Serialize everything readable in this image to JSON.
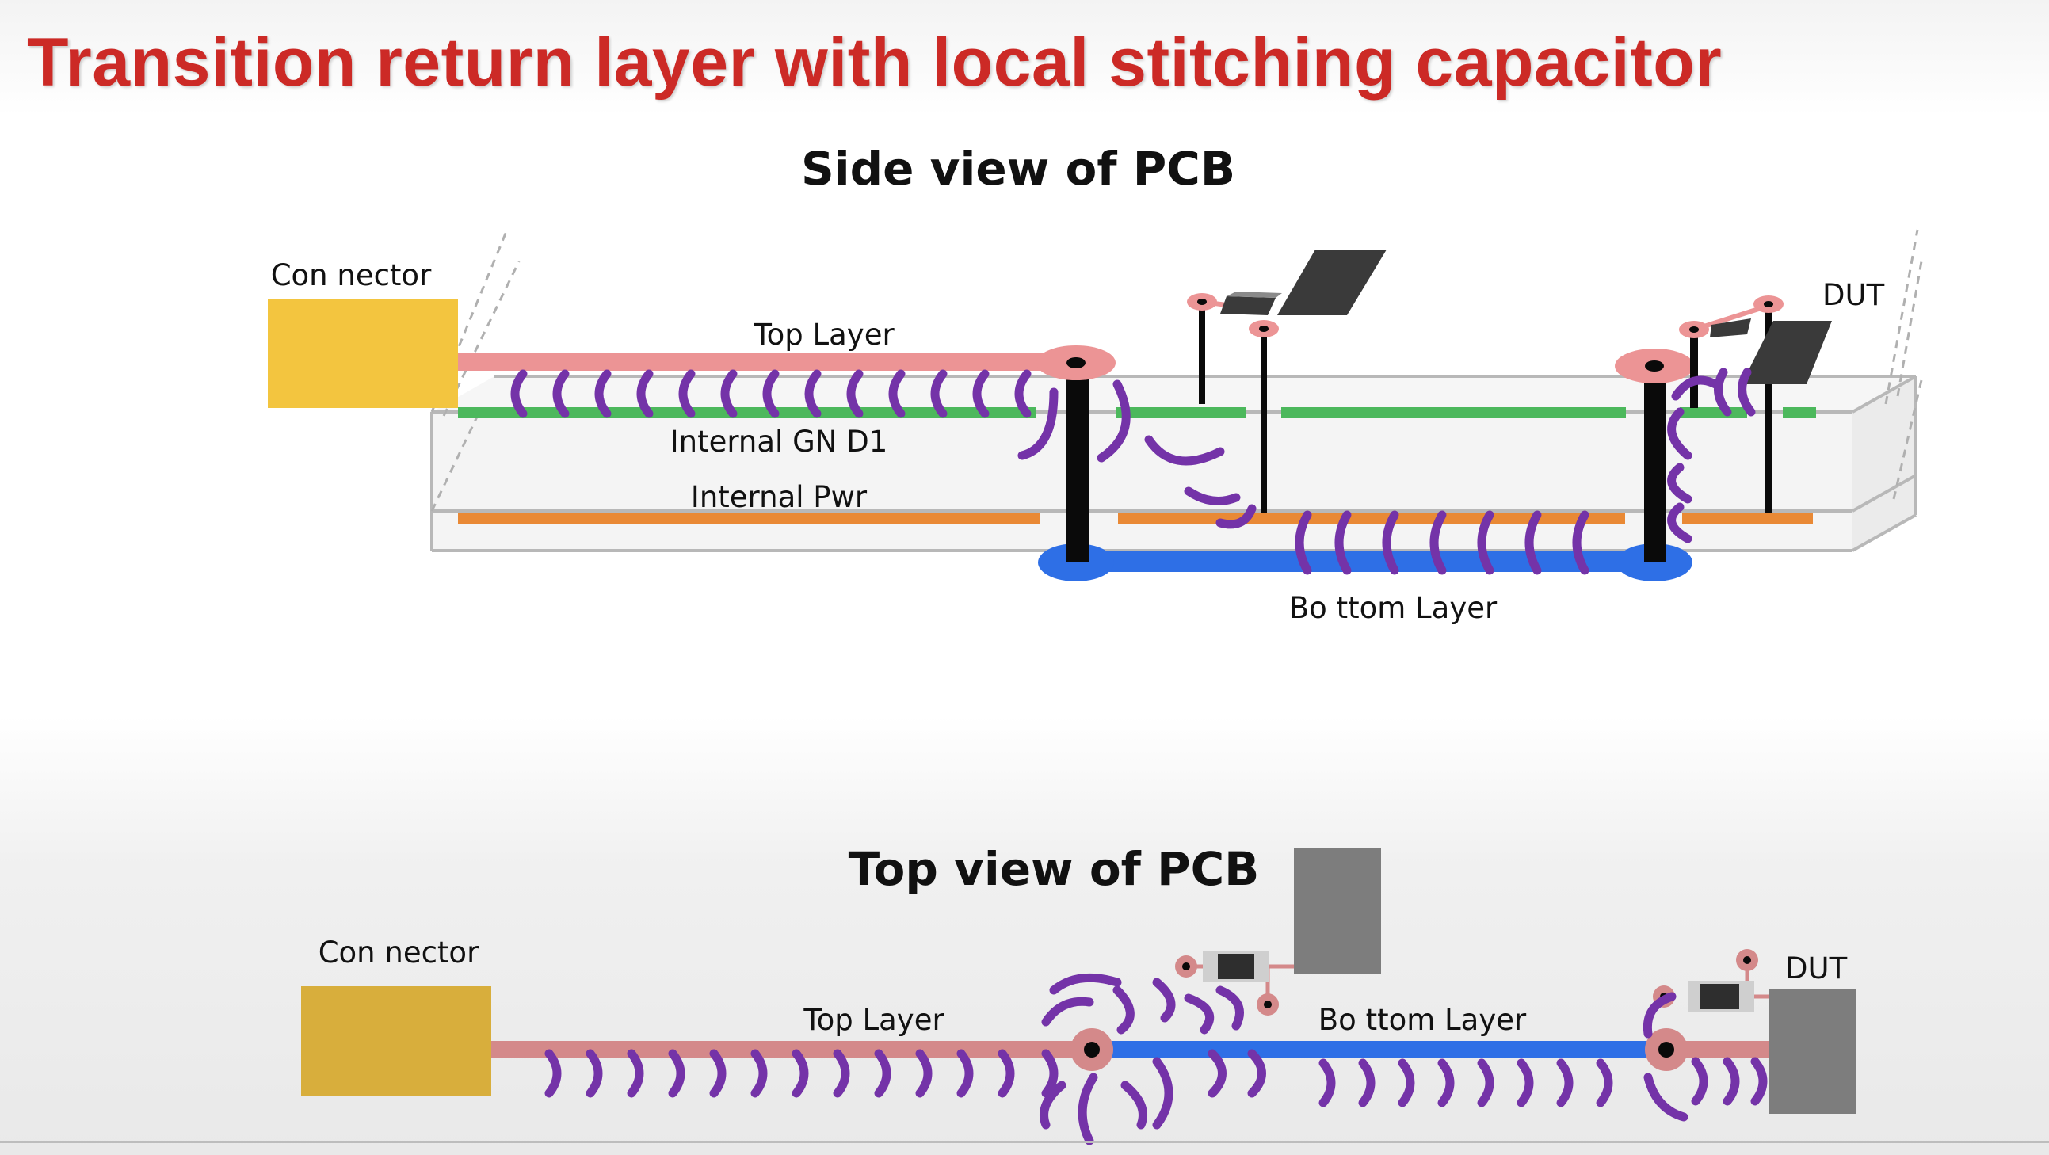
{
  "title": "Transition return layer with local stitching capacitor",
  "side_view": {
    "heading": "Side view of PCB",
    "connector": "Con nector",
    "top_layer": "Top Layer",
    "gnd": "Internal GN D1",
    "pwr": "Internal Pwr",
    "bottom_layer": "Bo ttom Layer",
    "dut": "DUT"
  },
  "top_view": {
    "heading": "Top view of PCB",
    "connector": "Con nector",
    "top_layer": "Top Layer",
    "bottom_layer": "Bo ttom Layer",
    "dut": "DUT"
  },
  "colors": {
    "title_red": "#cc2a26",
    "connector": "#f3c53f",
    "connector_top_view": "#d8ae3c",
    "top_layer": "#ec9495",
    "top_view_trace": "#d4898a",
    "gnd_layer": "#4cb85c",
    "pwr_layer": "#e98935",
    "bottom_layer": "#2e6fe6",
    "return_current": "#7433a8",
    "via": "#0a0a0a",
    "dut": "#4a4a4a"
  }
}
